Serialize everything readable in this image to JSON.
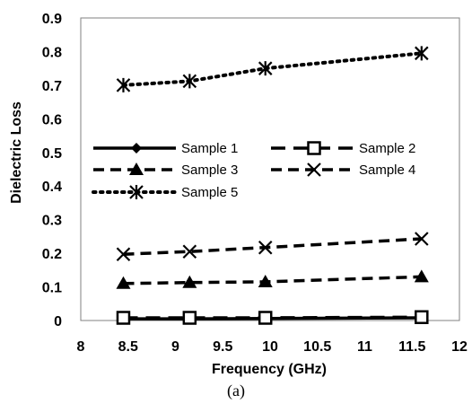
{
  "chart_data": {
    "type": "line",
    "xlabel": "Frequency (GHz)",
    "ylabel": "Dielectric  Loss",
    "caption": "(a)",
    "xlim": [
      8,
      12
    ],
    "ylim": [
      0,
      0.9
    ],
    "xticks": [
      "8",
      "8.5",
      "9",
      "9.5",
      "10",
      "10.5",
      "11",
      "11.5",
      "12"
    ],
    "yticks": [
      "0",
      "0.1",
      "0.2",
      "0.3",
      "0.4",
      "0.5",
      "0.6",
      "0.7",
      "0.8",
      "0.9"
    ],
    "x": [
      8.45,
      9.15,
      9.95,
      11.6
    ],
    "grid": false,
    "legend_position": "center",
    "series": [
      {
        "name": "Sample 1",
        "values": [
          0.005,
          0.005,
          0.006,
          0.008
        ],
        "marker": "diamond",
        "line": "solid",
        "color": "#000000"
      },
      {
        "name": "Sample 2",
        "values": [
          0.008,
          0.008,
          0.008,
          0.01
        ],
        "marker": "square",
        "line": "longdash",
        "color": "#000000"
      },
      {
        "name": "Sample 3",
        "values": [
          0.11,
          0.113,
          0.115,
          0.13
        ],
        "marker": "triangle",
        "line": "dash",
        "color": "#000000"
      },
      {
        "name": "Sample 4",
        "values": [
          0.197,
          0.205,
          0.217,
          0.243
        ],
        "marker": "x",
        "line": "dash",
        "color": "#000000"
      },
      {
        "name": "Sample 5",
        "values": [
          0.7,
          0.712,
          0.75,
          0.795
        ],
        "marker": "asterisk",
        "line": "dotted",
        "color": "#000000"
      }
    ]
  }
}
